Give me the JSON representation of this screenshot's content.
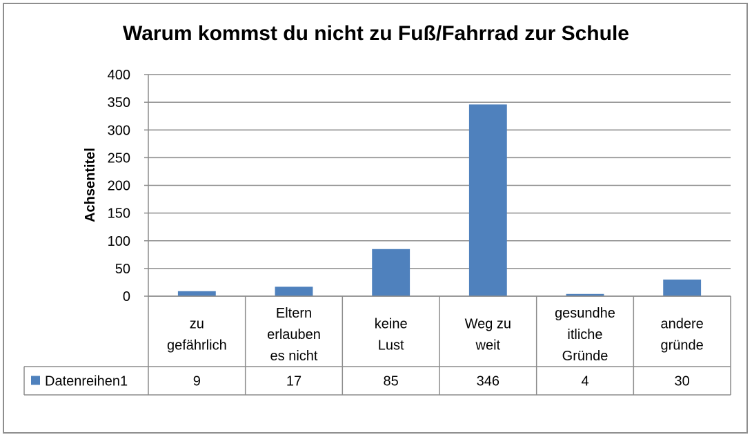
{
  "chart_data": {
    "type": "bar",
    "title": "Warum kommst du nicht zu Fuß/Fahrrad zur Schule",
    "xlabel": "",
    "ylabel": "Achsentitel",
    "ylim": [
      0,
      400
    ],
    "yticks": [
      0,
      50,
      100,
      150,
      200,
      250,
      300,
      350,
      400
    ],
    "grid": true,
    "legend": "data-table",
    "categories": [
      [
        "zu",
        "gefährlich"
      ],
      [
        "Eltern",
        "erlauben",
        "es nicht"
      ],
      [
        "keine",
        "Lust"
      ],
      [
        "Weg zu",
        "weit"
      ],
      [
        "gesundhe",
        "itliche",
        "Gründe"
      ],
      [
        "andere",
        "gründe"
      ]
    ],
    "series": [
      {
        "name": "Datenreihen1",
        "values": [
          9,
          17,
          85,
          346,
          4,
          30
        ],
        "color": "#4f81bd"
      }
    ]
  }
}
